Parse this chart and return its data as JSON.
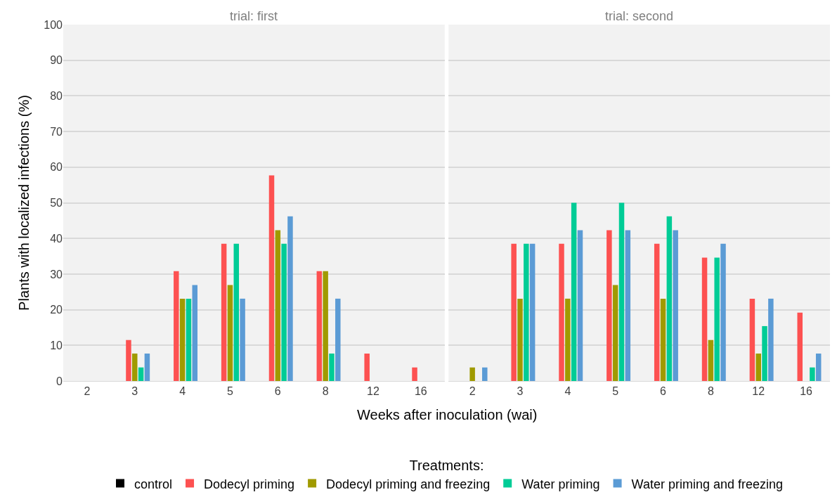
{
  "chart_data": [
    {
      "type": "bar",
      "title": "trial: first",
      "categories": [
        "2",
        "3",
        "4",
        "5",
        "6",
        "8",
        "12",
        "16"
      ],
      "ylim": [
        0,
        100
      ],
      "yticks": [
        0,
        10,
        20,
        30,
        40,
        50,
        60,
        70,
        80,
        90,
        100
      ],
      "grid": "y",
      "ylabel": "Plants with localized infections (%)",
      "xlabel": "Weeks after inoculation (wai)",
      "legend": "bottom",
      "legend_title": "Treatments:",
      "series": [
        {
          "name": "control",
          "color": "#000000",
          "values": [
            0,
            0,
            0,
            0,
            0,
            0,
            0,
            0
          ]
        },
        {
          "name": "Dodecyl priming",
          "color": "#fd5151",
          "values": [
            0,
            11.5,
            30.8,
            38.5,
            57.7,
            30.8,
            7.7,
            3.8
          ]
        },
        {
          "name": "Dodecyl priming and freezing",
          "color": "#a09a00",
          "values": [
            0,
            7.7,
            23.1,
            26.9,
            42.3,
            30.8,
            0,
            0
          ]
        },
        {
          "name": "Water priming",
          "color": "#00cc96",
          "values": [
            0,
            3.8,
            23.1,
            38.5,
            38.5,
            7.7,
            0,
            0
          ]
        },
        {
          "name": "Water priming and freezing",
          "color": "#5b9bd5",
          "values": [
            0,
            7.7,
            26.9,
            23.1,
            46.2,
            23.1,
            0,
            0
          ]
        }
      ]
    },
    {
      "type": "bar",
      "title": "trial: second",
      "categories": [
        "2",
        "3",
        "4",
        "5",
        "6",
        "8",
        "12",
        "16"
      ],
      "ylim": [
        0,
        100
      ],
      "yticks": [
        0,
        10,
        20,
        30,
        40,
        50,
        60,
        70,
        80,
        90,
        100
      ],
      "grid": "y",
      "tick_labels": "x",
      "series": [
        {
          "color": "#000000",
          "values": [
            0,
            0,
            0,
            0,
            0,
            0,
            0,
            0
          ]
        },
        {
          "color": "#fd5151",
          "values": [
            0,
            38.5,
            38.5,
            42.3,
            38.5,
            34.6,
            23.1,
            19.2
          ]
        },
        {
          "color": "#a09a00",
          "values": [
            3.8,
            23.1,
            23.1,
            26.9,
            23.1,
            11.5,
            7.7,
            0
          ]
        },
        {
          "color": "#00cc96",
          "values": [
            0,
            38.5,
            50,
            50,
            46.2,
            34.6,
            15.4,
            3.8
          ]
        },
        {
          "color": "#5b9bd5",
          "values": [
            3.8,
            38.5,
            42.3,
            42.3,
            42.3,
            38.5,
            23.1,
            7.7
          ]
        }
      ]
    }
  ]
}
